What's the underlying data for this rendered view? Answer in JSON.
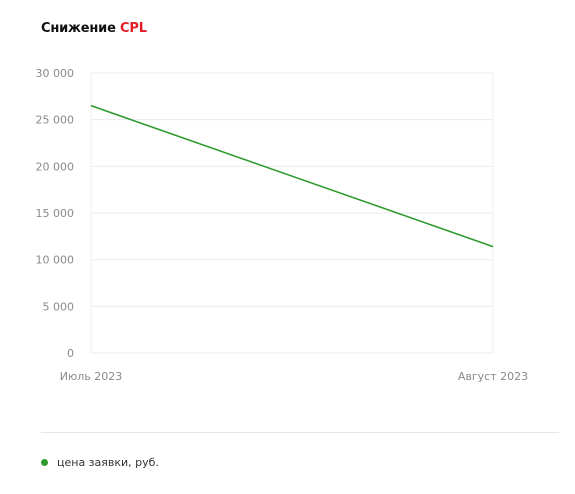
{
  "header": {
    "title_main": "Снижение",
    "title_accent": "CPL",
    "accent_color": "#e41e26"
  },
  "chart_data": {
    "type": "line",
    "title": "Снижение CPL",
    "categories": [
      "Июль 2023",
      "Август 2023"
    ],
    "series": [
      {
        "name": "цена заявки, руб.",
        "values": [
          26500,
          11400
        ],
        "color": "#2e9a2e"
      }
    ],
    "ylim": [
      0,
      30000
    ],
    "yticks": [
      0,
      5000,
      10000,
      15000,
      20000,
      25000,
      30000
    ],
    "ytick_labels": [
      "0",
      "5 000",
      "10 000",
      "15 000",
      "20 000",
      "25 000",
      "30 000"
    ],
    "grid": true,
    "legend_position": "bottom-left"
  }
}
